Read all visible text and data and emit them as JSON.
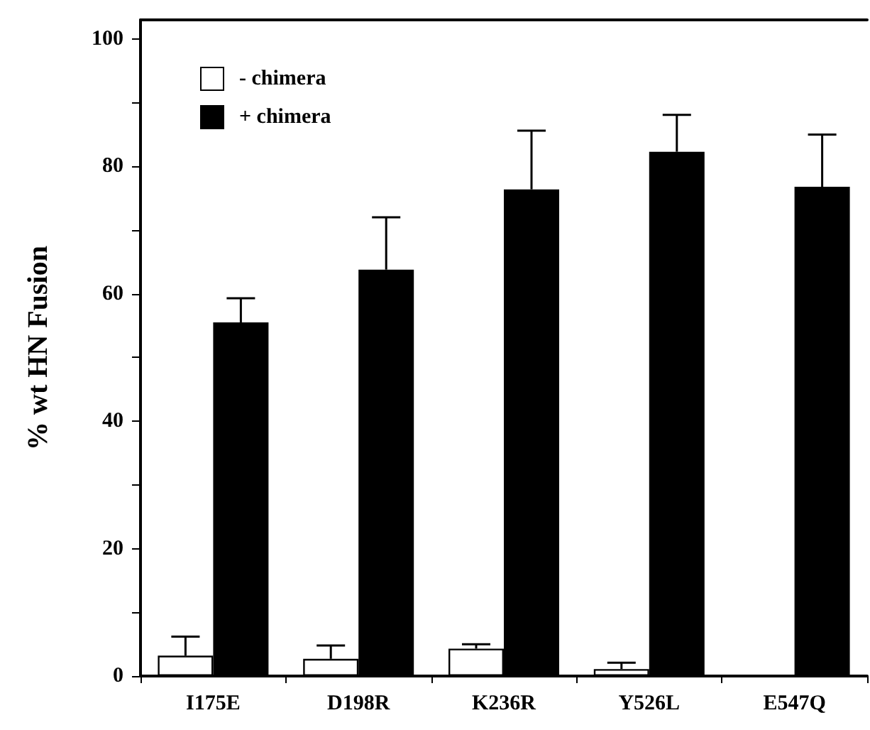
{
  "chart_data": {
    "type": "bar",
    "ylabel": "% wt HN Fusion",
    "categories": [
      "I175E",
      "D198R",
      "K236R",
      "Y526L",
      "E547Q"
    ],
    "series": [
      {
        "name": "- chimera",
        "color": "#ffffff",
        "values": [
          3.2,
          2.7,
          4.3,
          1.1,
          null
        ],
        "errors": [
          [
            3.2,
            6.2
          ],
          [
            2.7,
            4.8
          ],
          [
            4.3,
            5.0
          ],
          [
            1.1,
            2.1
          ],
          null
        ]
      },
      {
        "name": "+ chimera",
        "color": "#000000",
        "values": [
          55.5,
          63.8,
          76.4,
          82.3,
          76.8
        ],
        "errors": [
          [
            55.5,
            59.3
          ],
          [
            63.8,
            72
          ],
          [
            76.4,
            85.6
          ],
          [
            82.3,
            88.1
          ],
          [
            76.8,
            85
          ]
        ]
      }
    ],
    "ylim": [
      0,
      103
    ],
    "yticks": [
      0,
      {
        "value": 10,
        "label": null
      },
      20,
      {
        "value": 30,
        "label": null
      },
      40,
      {
        "value": 50,
        "label": null
      },
      60,
      {
        "value": 70,
        "label": null
      },
      80,
      {
        "value": 90,
        "label": null
      },
      100
    ],
    "grid": false,
    "legend": "top left"
  }
}
